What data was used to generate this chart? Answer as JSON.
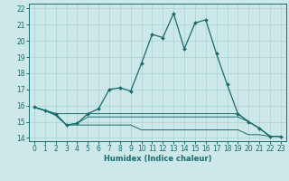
{
  "title": "",
  "xlabel": "Humidex (Indice chaleur)",
  "bg_color": "#cce8e8",
  "line_color": "#1a6b6b",
  "grid_color": "#aad0d0",
  "xlim": [
    -0.5,
    23.5
  ],
  "ylim": [
    13.8,
    22.3
  ],
  "xticks": [
    0,
    1,
    2,
    3,
    4,
    5,
    6,
    7,
    8,
    9,
    10,
    11,
    12,
    13,
    14,
    15,
    16,
    17,
    18,
    19,
    20,
    21,
    22,
    23
  ],
  "yticks": [
    14,
    15,
    16,
    17,
    18,
    19,
    20,
    21,
    22
  ],
  "line1_x": [
    0,
    1,
    2,
    3,
    4,
    5,
    6,
    7,
    8,
    9,
    10,
    11,
    12,
    13,
    14,
    15,
    16,
    17,
    18,
    19,
    20,
    21,
    22,
    23
  ],
  "line1_y": [
    15.9,
    15.7,
    15.5,
    14.8,
    14.9,
    15.5,
    15.8,
    17.0,
    17.1,
    16.9,
    18.6,
    20.4,
    20.2,
    21.7,
    19.5,
    21.1,
    21.3,
    19.2,
    17.3,
    15.5,
    15.0,
    14.6,
    14.1,
    14.1
  ],
  "line2_x": [
    0,
    1,
    2,
    3,
    4,
    5,
    6,
    7,
    8,
    9,
    10,
    11,
    12,
    13,
    14,
    15,
    16,
    17,
    18,
    19,
    20,
    21,
    22,
    23
  ],
  "line2_y": [
    15.9,
    15.7,
    15.5,
    15.5,
    15.5,
    15.5,
    15.5,
    15.5,
    15.5,
    15.5,
    15.5,
    15.5,
    15.5,
    15.5,
    15.5,
    15.5,
    15.5,
    15.5,
    15.5,
    15.5,
    15.0,
    14.6,
    14.1,
    14.1
  ],
  "line3_x": [
    0,
    1,
    2,
    3,
    4,
    5,
    6,
    7,
    8,
    9,
    10,
    11,
    12,
    13,
    14,
    15,
    16,
    17,
    18,
    19,
    20,
    21,
    22,
    23
  ],
  "line3_y": [
    15.9,
    15.7,
    15.4,
    14.8,
    14.9,
    15.3,
    15.3,
    15.3,
    15.3,
    15.3,
    15.3,
    15.3,
    15.3,
    15.3,
    15.3,
    15.3,
    15.3,
    15.3,
    15.3,
    15.3,
    15.0,
    14.6,
    14.1,
    14.1
  ],
  "line4_x": [
    0,
    1,
    2,
    3,
    4,
    5,
    6,
    7,
    8,
    9,
    10,
    11,
    12,
    13,
    14,
    15,
    16,
    17,
    18,
    19,
    20,
    21,
    22,
    23
  ],
  "line4_y": [
    15.9,
    15.7,
    15.4,
    14.8,
    14.8,
    14.8,
    14.8,
    14.8,
    14.8,
    14.8,
    14.5,
    14.5,
    14.5,
    14.5,
    14.5,
    14.5,
    14.5,
    14.5,
    14.5,
    14.5,
    14.2,
    14.2,
    14.1,
    14.1
  ],
  "tick_fontsize": 5.5,
  "xlabel_fontsize": 6.0
}
